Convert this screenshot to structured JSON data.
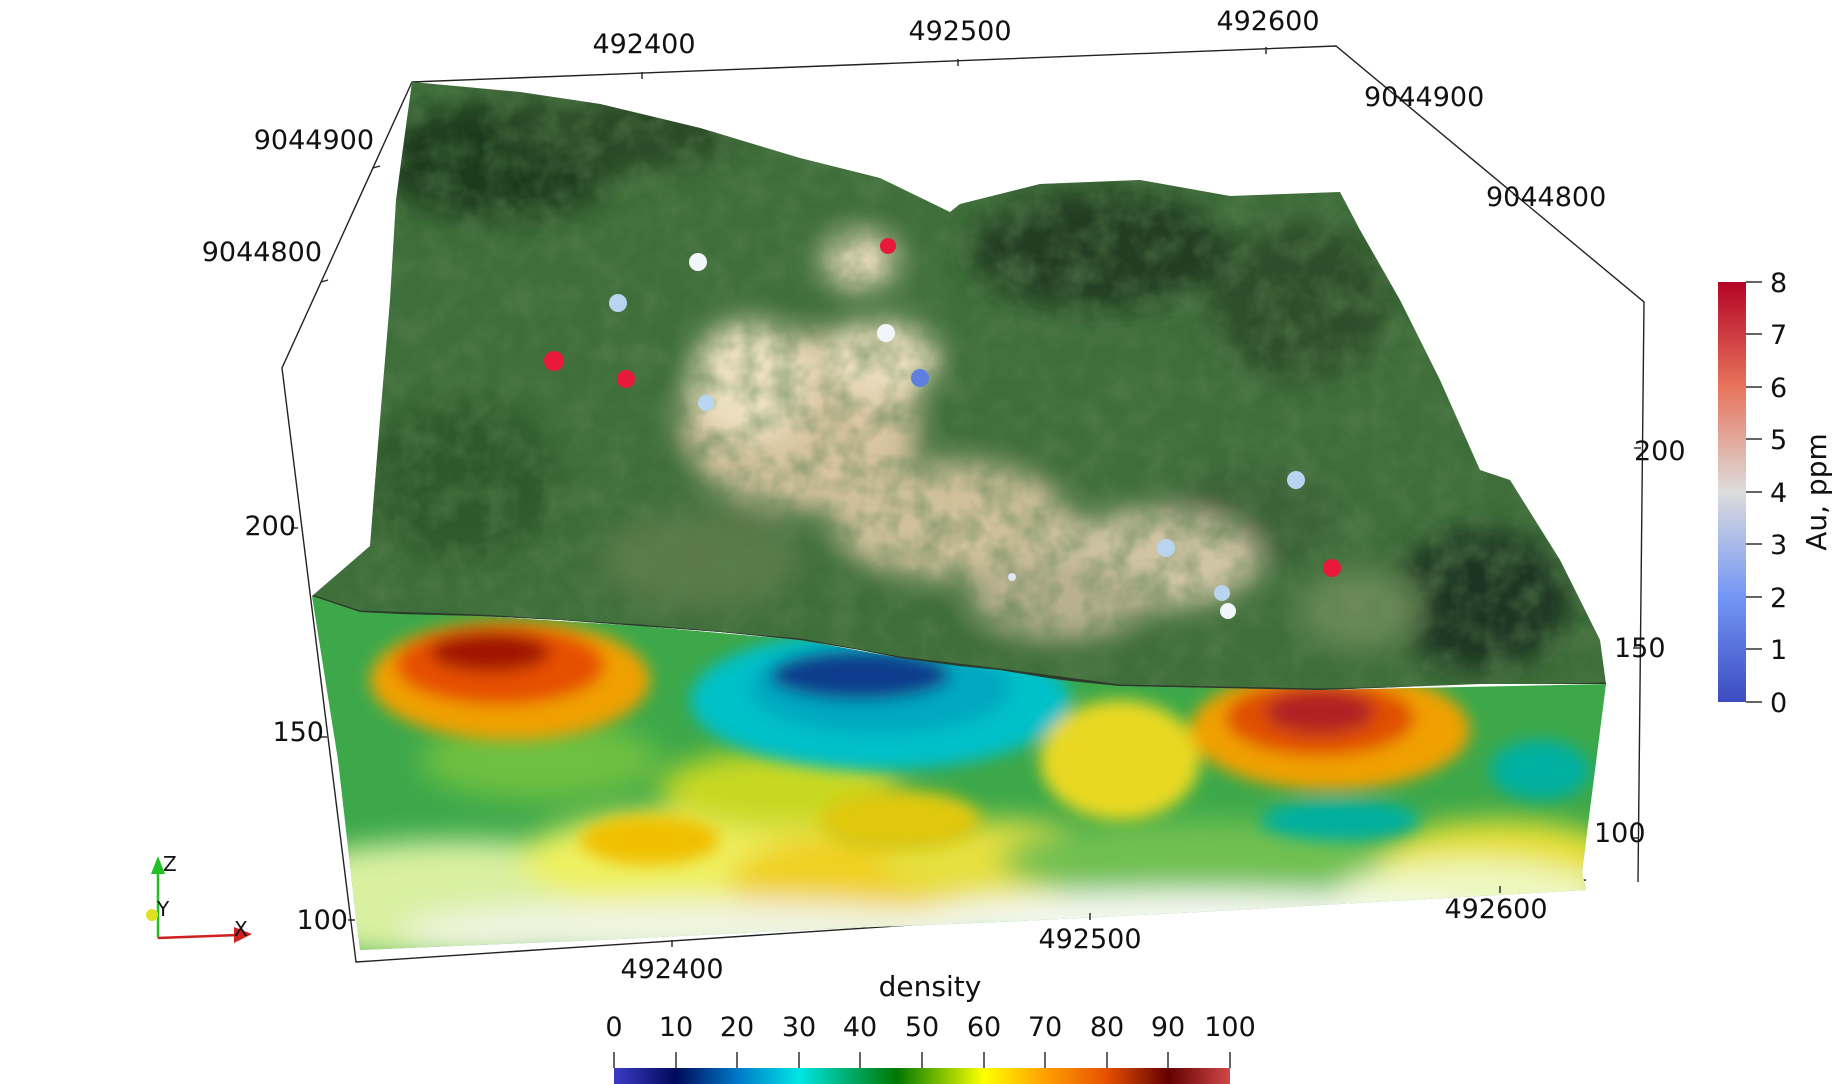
{
  "scene": {
    "top_x_ticks": [
      "492400",
      "492500",
      "492600"
    ],
    "left_y_ticks": [
      "9044900",
      "9044800"
    ],
    "right_y_ticks": [
      "9044900",
      "9044800"
    ],
    "left_z_ticks": [
      "200",
      "150",
      "100"
    ],
    "right_z_ticks": [
      "200",
      "150",
      "100"
    ],
    "bottom_x_ticks": [
      "492400",
      "492500",
      "492600"
    ]
  },
  "au_colorbar": {
    "title": "Au, ppm",
    "labels": [
      "8",
      "7",
      "6",
      "5",
      "4",
      "3",
      "2",
      "1",
      "0"
    ],
    "colors": [
      "#b40426",
      "#e7745b",
      "#dddcdc",
      "#7396f5",
      "#3b4cc0"
    ]
  },
  "density_colorbar": {
    "title": "density",
    "labels": [
      "0",
      "10",
      "20",
      "30",
      "40",
      "50",
      "60",
      "70",
      "80",
      "90",
      "100"
    ],
    "colors": [
      "#3b3bc8",
      "#000a5a",
      "#0078c8",
      "#00e6e6",
      "#00a050",
      "#007800",
      "#a0d200",
      "#ffff00",
      "#ffa000",
      "#e65000",
      "#640000",
      "#d04848"
    ]
  },
  "orientation_axes": {
    "z": "Z",
    "y": "Y",
    "x": "X"
  },
  "samples": {
    "red": "#e8193c",
    "white": "#f2f6fa",
    "lightblue": "#b8d4f0",
    "blue": "#5f7fe0"
  }
}
